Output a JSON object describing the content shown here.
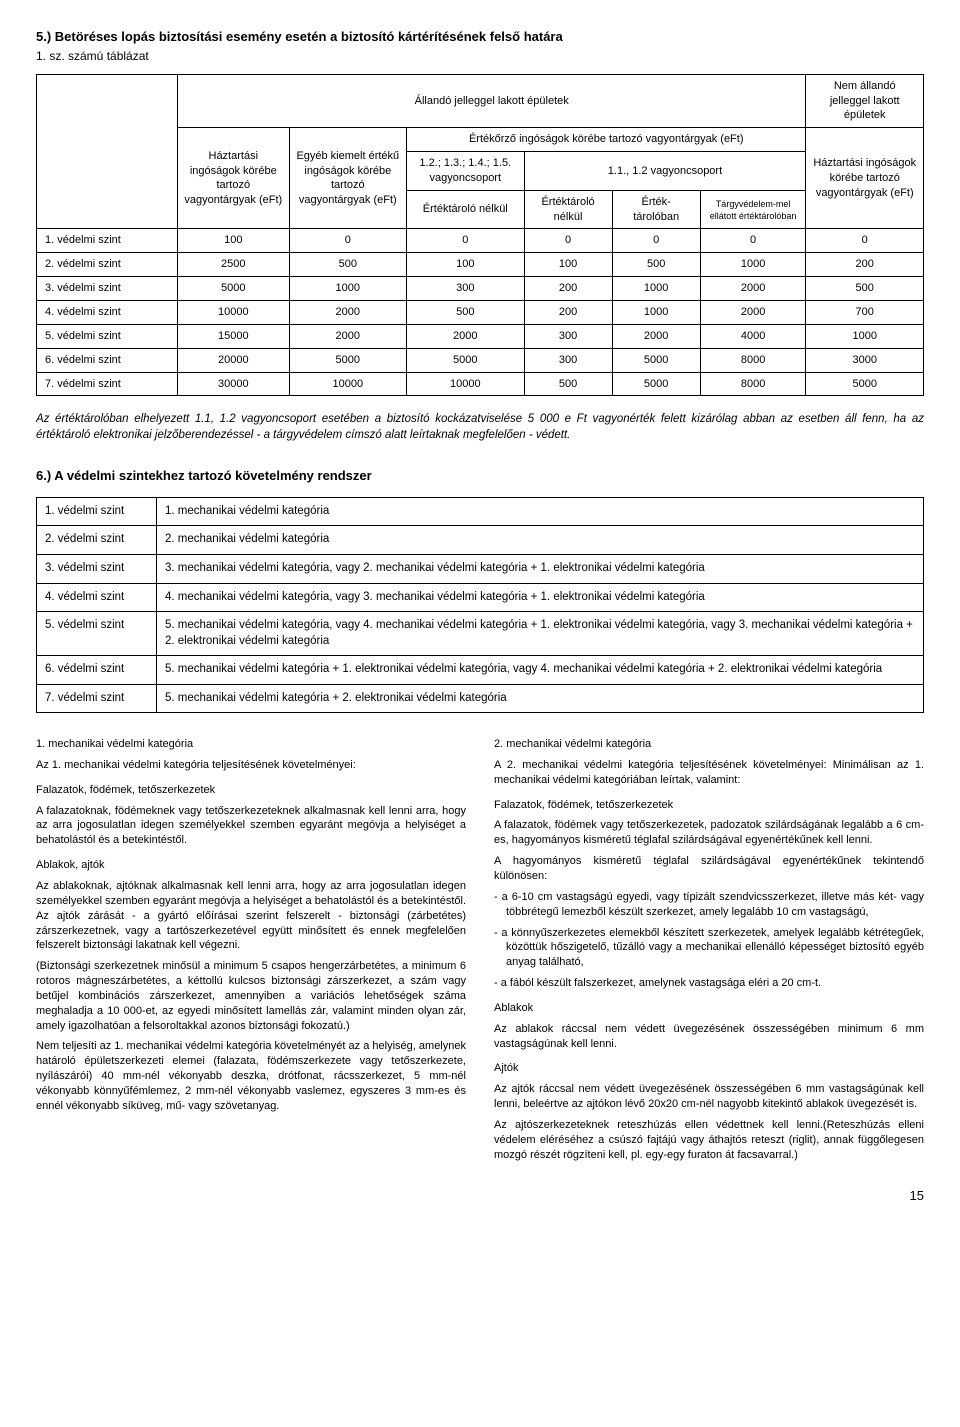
{
  "h5": "5.) Betöréses lopás biztosítási esemény esetén a biztosító kártérítésének felső határa",
  "h5sub": "1. sz. számú táblázat",
  "t1": {
    "super1": "Állandó jelleggel lakott épületek",
    "super2": "Nem állandó jelleggel lakott épületek",
    "c1": "Háztartási ingóságok körébe tartozó vagyontárgyak (eFt)",
    "c2": "Egyéb kiemelt értékű ingóságok körébe tartozó vagyontárgyak (eFt)",
    "c3": "Értékőrző ingóságok körébe tartozó vagyontárgyak (eFt)",
    "c3a": "1.2.; 1.3.; 1.4.; 1.5. vagyoncsoport",
    "c3b": "1.1., 1.2 vagyoncsoport",
    "c3a1": "Értéktároló nélkül",
    "c3b1": "Értéktároló nélkül",
    "c3b2": "Érték-tárolóban",
    "c3b3": "Tárgyvédelem-mel ellátott értéktárolóban",
    "c4": "Háztartási ingóságok körébe tartozó vagyontárgyak (eFt)",
    "rows": [
      [
        "1. védelmi szint",
        "100",
        "0",
        "0",
        "0",
        "0",
        "0",
        "0"
      ],
      [
        "2. védelmi szint",
        "2500",
        "500",
        "100",
        "100",
        "500",
        "1000",
        "200"
      ],
      [
        "3. védelmi szint",
        "5000",
        "1000",
        "300",
        "200",
        "1000",
        "2000",
        "500"
      ],
      [
        "4. védelmi szint",
        "10000",
        "2000",
        "500",
        "200",
        "1000",
        "2000",
        "700"
      ],
      [
        "5. védelmi szint",
        "15000",
        "2000",
        "2000",
        "300",
        "2000",
        "4000",
        "1000"
      ],
      [
        "6. védelmi szint",
        "20000",
        "5000",
        "5000",
        "300",
        "5000",
        "8000",
        "3000"
      ],
      [
        "7. védelmi szint",
        "30000",
        "10000",
        "10000",
        "500",
        "5000",
        "8000",
        "5000"
      ]
    ]
  },
  "note": "Az értéktárolóban elhelyezett 1.1, 1.2 vagyoncsoport esetében a biztosító kockázatviselése 5 000 e Ft vagyonérték felett kizárólag abban az esetben áll fenn, ha az értéktároló elektronikai jelzőberendezéssel - a tárgyvédelem címszó alatt leírtaknak megfelelően - védett.",
  "h6": "6.) A védelmi szintekhez tartozó követelmény rendszer",
  "t2": {
    "rows": [
      [
        "1. védelmi szint",
        "1. mechanikai védelmi kategória"
      ],
      [
        "2. védelmi szint",
        "2. mechanikai védelmi kategória"
      ],
      [
        "3. védelmi szint",
        "3. mechanikai védelmi kategória, vagy 2. mechanikai védelmi kategória + 1. elektronikai védelmi kategória"
      ],
      [
        "4. védelmi szint",
        "4. mechanikai védelmi kategória, vagy 3. mechanikai védelmi kategória + 1. elektronikai védelmi kategória"
      ],
      [
        "5. védelmi szint",
        "5. mechanikai védelmi kategória, vagy 4. mechanikai védelmi kategória + 1. elektronikai védelmi kategória, vagy 3. mechanikai védelmi kategória + 2. elektronikai védelmi kategória"
      ],
      [
        "6. védelmi szint",
        "5. mechanikai védelmi kategória + 1. elektronikai védelmi kategória, vagy 4. mechanikai védelmi kategória + 2. elektronikai védelmi kategória"
      ],
      [
        "7. védelmi szint",
        "5. mechanikai védelmi kategória + 2. elektronikai védelmi kategória"
      ]
    ]
  },
  "left": {
    "h1": "1. mechanikai védelmi kategória",
    "h1b": "Az 1. mechanikai védelmi kategória teljesítésének követelményei:",
    "p1h": "Falazatok, födémek, tetőszerkezetek",
    "p1": "A falazatoknak, födémeknek vagy tetőszerkezeteknek alkalmasnak kell lenni arra, hogy az arra jogosulatlan idegen személyekkel szemben egyaránt megóvja a helyiséget a behatolástól és a betekintéstől.",
    "p2h": "Ablakok, ajtók",
    "p2": "Az ablakoknak, ajtóknak alkalmasnak kell lenni arra, hogy az arra jogosulatlan idegen személyekkel szemben egyaránt megóvja a helyiséget a behatolástól és a betekintéstől. Az ajtók zárását - a gyártó előírásai szerint felszerelt - biztonsági (zárbetétes) zárszerkezetnek, vagy a tartószerkezetével együtt minősített és ennek megfelelően felszerelt biztonsági lakatnak kell végezni.",
    "p3": "(Biztonsági szerkezetnek minősül a minimum 5 csapos hengerzárbetétes, a minimum 6 rotoros mágneszárbetétes, a kéttollú kulcsos biztonsági zárszerkezet, a szám vagy betűjel kombinációs zárszerkezet, amennyiben a variációs lehetőségek száma meghaladja a 10 000-et, az egyedi minősített lamellás zár, valamint minden olyan zár, amely igazolhatóan a felsoroltakkal azonos biztonsági fokozatú.)",
    "p4": "Nem teljesíti az 1. mechanikai védelmi kategória követelményét az a helyiség, amelynek határoló épületszerkezeti elemei (falazata, födémszerkezete vagy tetőszerkezete, nyílászárói) 40 mm-nél vékonyabb deszka, drótfonat, rácsszerkezet, 5 mm-nél vékonyabb könnyűfémlemez, 2 mm-nél vékonyabb vaslemez, egyszeres 3 mm-es és ennél vékonyabb síküveg, mű- vagy szövetanyag."
  },
  "right": {
    "h1": "2. mechanikai védelmi kategória",
    "h1b": "A 2. mechanikai védelmi kategória teljesítésének követelményei: Minimálisan az 1. mechanikai védelmi kategóriában leírtak, valamint:",
    "p1h": "Falazatok, födémek, tetőszerkezetek",
    "p1": "A falazatok, födémek vagy tetőszerkezetek, padozatok szilárdságának legalább a 6 cm-es, hagyományos kisméretű téglafal szilárdságával egyenértékűnek kell lenni.",
    "p2": "A hagyományos kisméretű téglafal szilárdságával egyenértékűnek tekintendő különösen:",
    "li1": "- a 6-10 cm vastagságú egyedi, vagy típizált szendvicsszerkezet, illetve más két- vagy többrétegű lemezből készült szerkezet, amely legalább 10 cm vastagságú,",
    "li2": "- a könnyűszerkezetes elemekből készített szerkezetek, amelyek legalább kétrétegűek, közöttük hőszigetelő, tűzálló vagy a mechanikai ellenálló képességet biztosító egyéb anyag található,",
    "li3": "- a fából készült falszerkezet, amelynek vastagsága eléri a 20 cm-t.",
    "p3h": "Ablakok",
    "p3": "Az ablakok ráccsal nem védett üvegezésének összességében minimum 6 mm vastagságúnak kell lenni.",
    "p4h": "Ajtók",
    "p4": "Az ajtók ráccsal nem védett üvegezésének összességében 6 mm vastagságúnak kell lenni, beleértve az ajtókon lévő 20x20 cm-nél nagyobb kitekintő ablakok üvegezését is.",
    "p5": "Az ajtószerkezeteknek reteszhúzás ellen védettnek kell lenni.(Reteszhúzás elleni védelem eléréséhez a csúszó fajtájú vagy áthajtós reteszt (riglit), annak függőlegesen mozgó részét rögzíteni kell, pl. egy-egy furaton át facsavarral.)"
  },
  "page": "15"
}
